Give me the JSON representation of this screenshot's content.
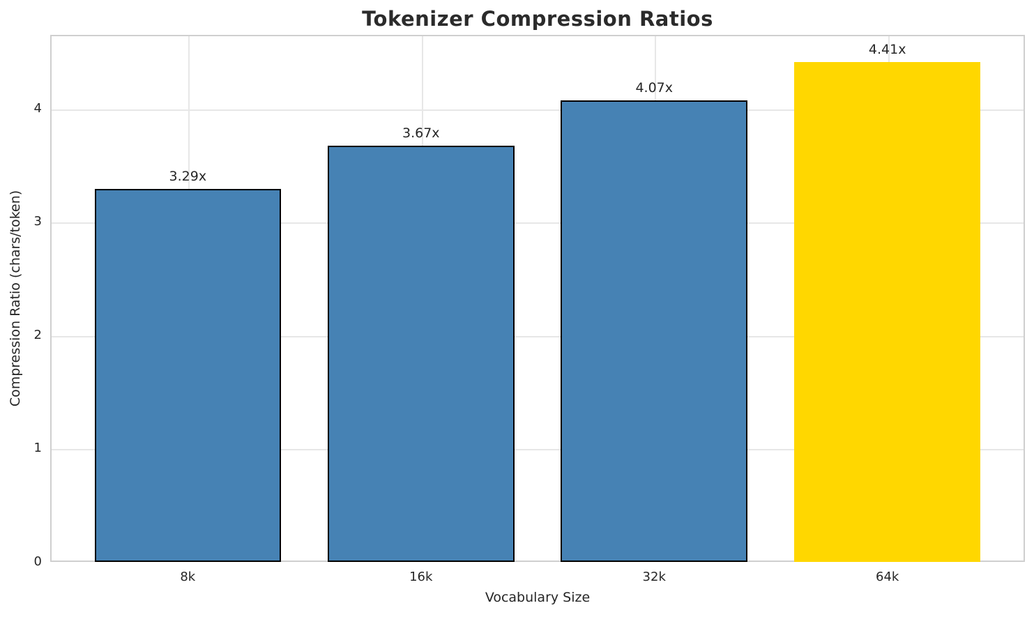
{
  "chart_data": {
    "type": "bar",
    "title": "Tokenizer Compression Ratios",
    "xlabel": "Vocabulary Size",
    "ylabel": "Compression Ratio (chars/token)",
    "categories": [
      "8k",
      "16k",
      "32k",
      "64k"
    ],
    "values": [
      3.29,
      3.67,
      4.07,
      4.41
    ],
    "value_labels": [
      "3.29x",
      "3.67x",
      "4.07x",
      "4.41x"
    ],
    "bar_colors": [
      "#4682B4",
      "#4682B4",
      "#4682B4",
      "#FFD700"
    ],
    "bar_edge_colors": [
      "#000000",
      "#000000",
      "#000000",
      "none"
    ],
    "base_bar_color": "#4682B4",
    "highlight_bar_color": "#FFD700",
    "y_ticks": [
      0,
      1,
      2,
      3,
      4
    ],
    "ylim": [
      0,
      4.65
    ],
    "grid": true,
    "grid_color": "#e7e7e7",
    "spine_color": "#cfcfcf",
    "legend_position": "none"
  }
}
